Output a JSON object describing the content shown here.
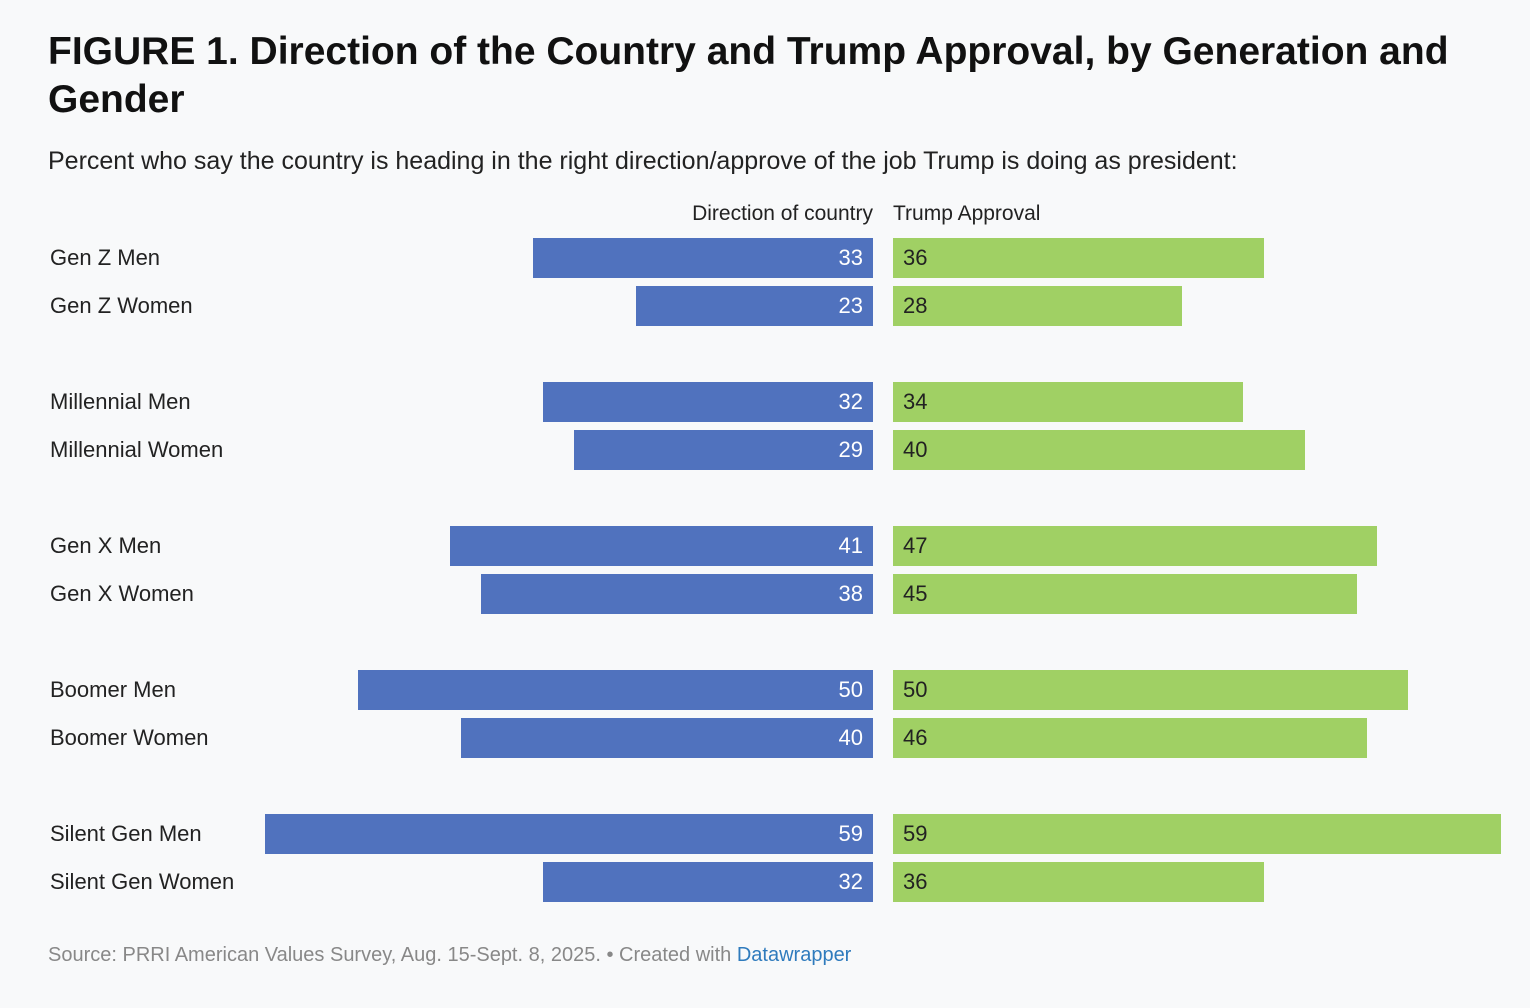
{
  "header": {
    "title": "FIGURE 1. Direction of the Country and Trump Approval, by Generation and Gender",
    "subtitle": "Percent who say the country is heading in the right direction/approve of the job Trump is doing as president:"
  },
  "footer": {
    "source_text": "Source: PRRI American Values Survey, Aug. 15-Sept. 8, 2025. • Created with ",
    "link_text": "Datawrapper"
  },
  "chart_data": {
    "type": "bar",
    "orientation": "horizontal",
    "layout": "diverging",
    "series": [
      {
        "name": "Direction of country",
        "color": "#5072be",
        "values": [
          33,
          23,
          32,
          29,
          41,
          38,
          50,
          40,
          59,
          32
        ]
      },
      {
        "name": "Trump Approval",
        "color": "#a0d064",
        "values": [
          36,
          28,
          34,
          40,
          47,
          45,
          50,
          46,
          59,
          36
        ]
      }
    ],
    "categories": [
      "Gen Z Men",
      "Gen Z Women",
      "Millennial Men",
      "Millennial Women",
      "Gen X Men",
      "Gen X Women",
      "Boomer Men",
      "Boomer Women",
      "Silent Gen Men",
      "Silent Gen Women"
    ],
    "xlim": [
      0,
      59
    ],
    "grid": false,
    "legend": "column headers"
  }
}
